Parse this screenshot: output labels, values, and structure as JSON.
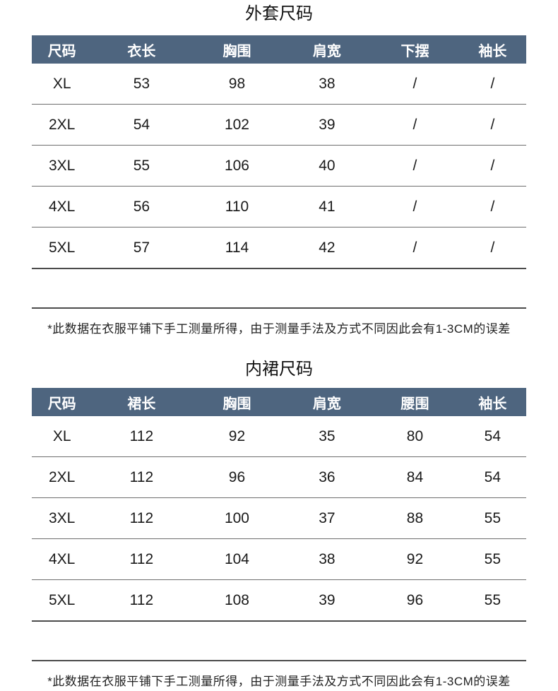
{
  "colors": {
    "header_bg": "#4e657f",
    "header_text": "#ffffff",
    "body_text": "#1a1a1a",
    "row_divider": "#6e6e6e",
    "section_line": "#4b4b4b",
    "page_bg": "#ffffff"
  },
  "chart_data": [
    {
      "type": "table",
      "title": "外套尺码",
      "columns": [
        "尺码",
        "衣长",
        "胸围",
        "肩宽",
        "下摆",
        "袖长"
      ],
      "rows": [
        [
          "XL",
          "53",
          "98",
          "38",
          "/",
          "/"
        ],
        [
          "2XL",
          "54",
          "102",
          "39",
          "/",
          "/"
        ],
        [
          "3XL",
          "55",
          "106",
          "40",
          "/",
          "/"
        ],
        [
          "4XL",
          "56",
          "110",
          "41",
          "/",
          "/"
        ],
        [
          "5XL",
          "57",
          "114",
          "42",
          "/",
          "/"
        ]
      ],
      "note": "*此数据在衣服平铺下手工测量所得，由于测量手法及方式不同因此会有1-3CM的误差"
    },
    {
      "type": "table",
      "title": "内裙尺码",
      "columns": [
        "尺码",
        "裙长",
        "胸围",
        "肩宽",
        "腰围",
        "袖长"
      ],
      "rows": [
        [
          "XL",
          "112",
          "92",
          "35",
          "80",
          "54"
        ],
        [
          "2XL",
          "112",
          "96",
          "36",
          "84",
          "54"
        ],
        [
          "3XL",
          "112",
          "100",
          "37",
          "88",
          "55"
        ],
        [
          "4XL",
          "112",
          "104",
          "38",
          "92",
          "55"
        ],
        [
          "5XL",
          "112",
          "108",
          "39",
          "96",
          "55"
        ]
      ],
      "note": "*此数据在衣服平铺下手工测量所得，由于测量手法及方式不同因此会有1-3CM的误差"
    }
  ]
}
